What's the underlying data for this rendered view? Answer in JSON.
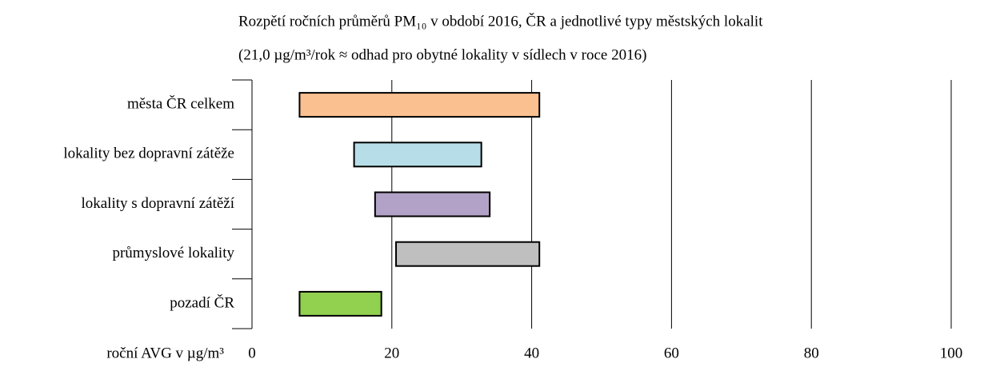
{
  "chart_data": {
    "type": "floating-bar",
    "title": "Rozpětí ročních průměrů PM₁₀ v období 2016, ČR a jednotlivé typy městských lokalit",
    "subtitle": "(21,0 µg/m³/rok ≈ odhad pro obytné lokality v sídlech v roce 2016)",
    "xlabel": "roční AVG v µg/m³",
    "categories": [
      "města ČR celkem",
      "lokality bez dopravní zátěže",
      "lokality s dopravní zátěží",
      "průmyslové lokality",
      "pozadí ČR"
    ],
    "values": [
      [
        6.8,
        41.1
      ],
      [
        14.6,
        32.8
      ],
      [
        17.6,
        34.0
      ],
      [
        20.6,
        41.1
      ],
      [
        6.8,
        18.5
      ]
    ],
    "colors": [
      "#fac090",
      "#b7dee8",
      "#b3a2c7",
      "#bfbfbf",
      "#92d050"
    ],
    "xlim": [
      0,
      100
    ],
    "xticks": [
      0,
      20,
      40,
      60,
      80,
      100
    ],
    "grid": true
  }
}
